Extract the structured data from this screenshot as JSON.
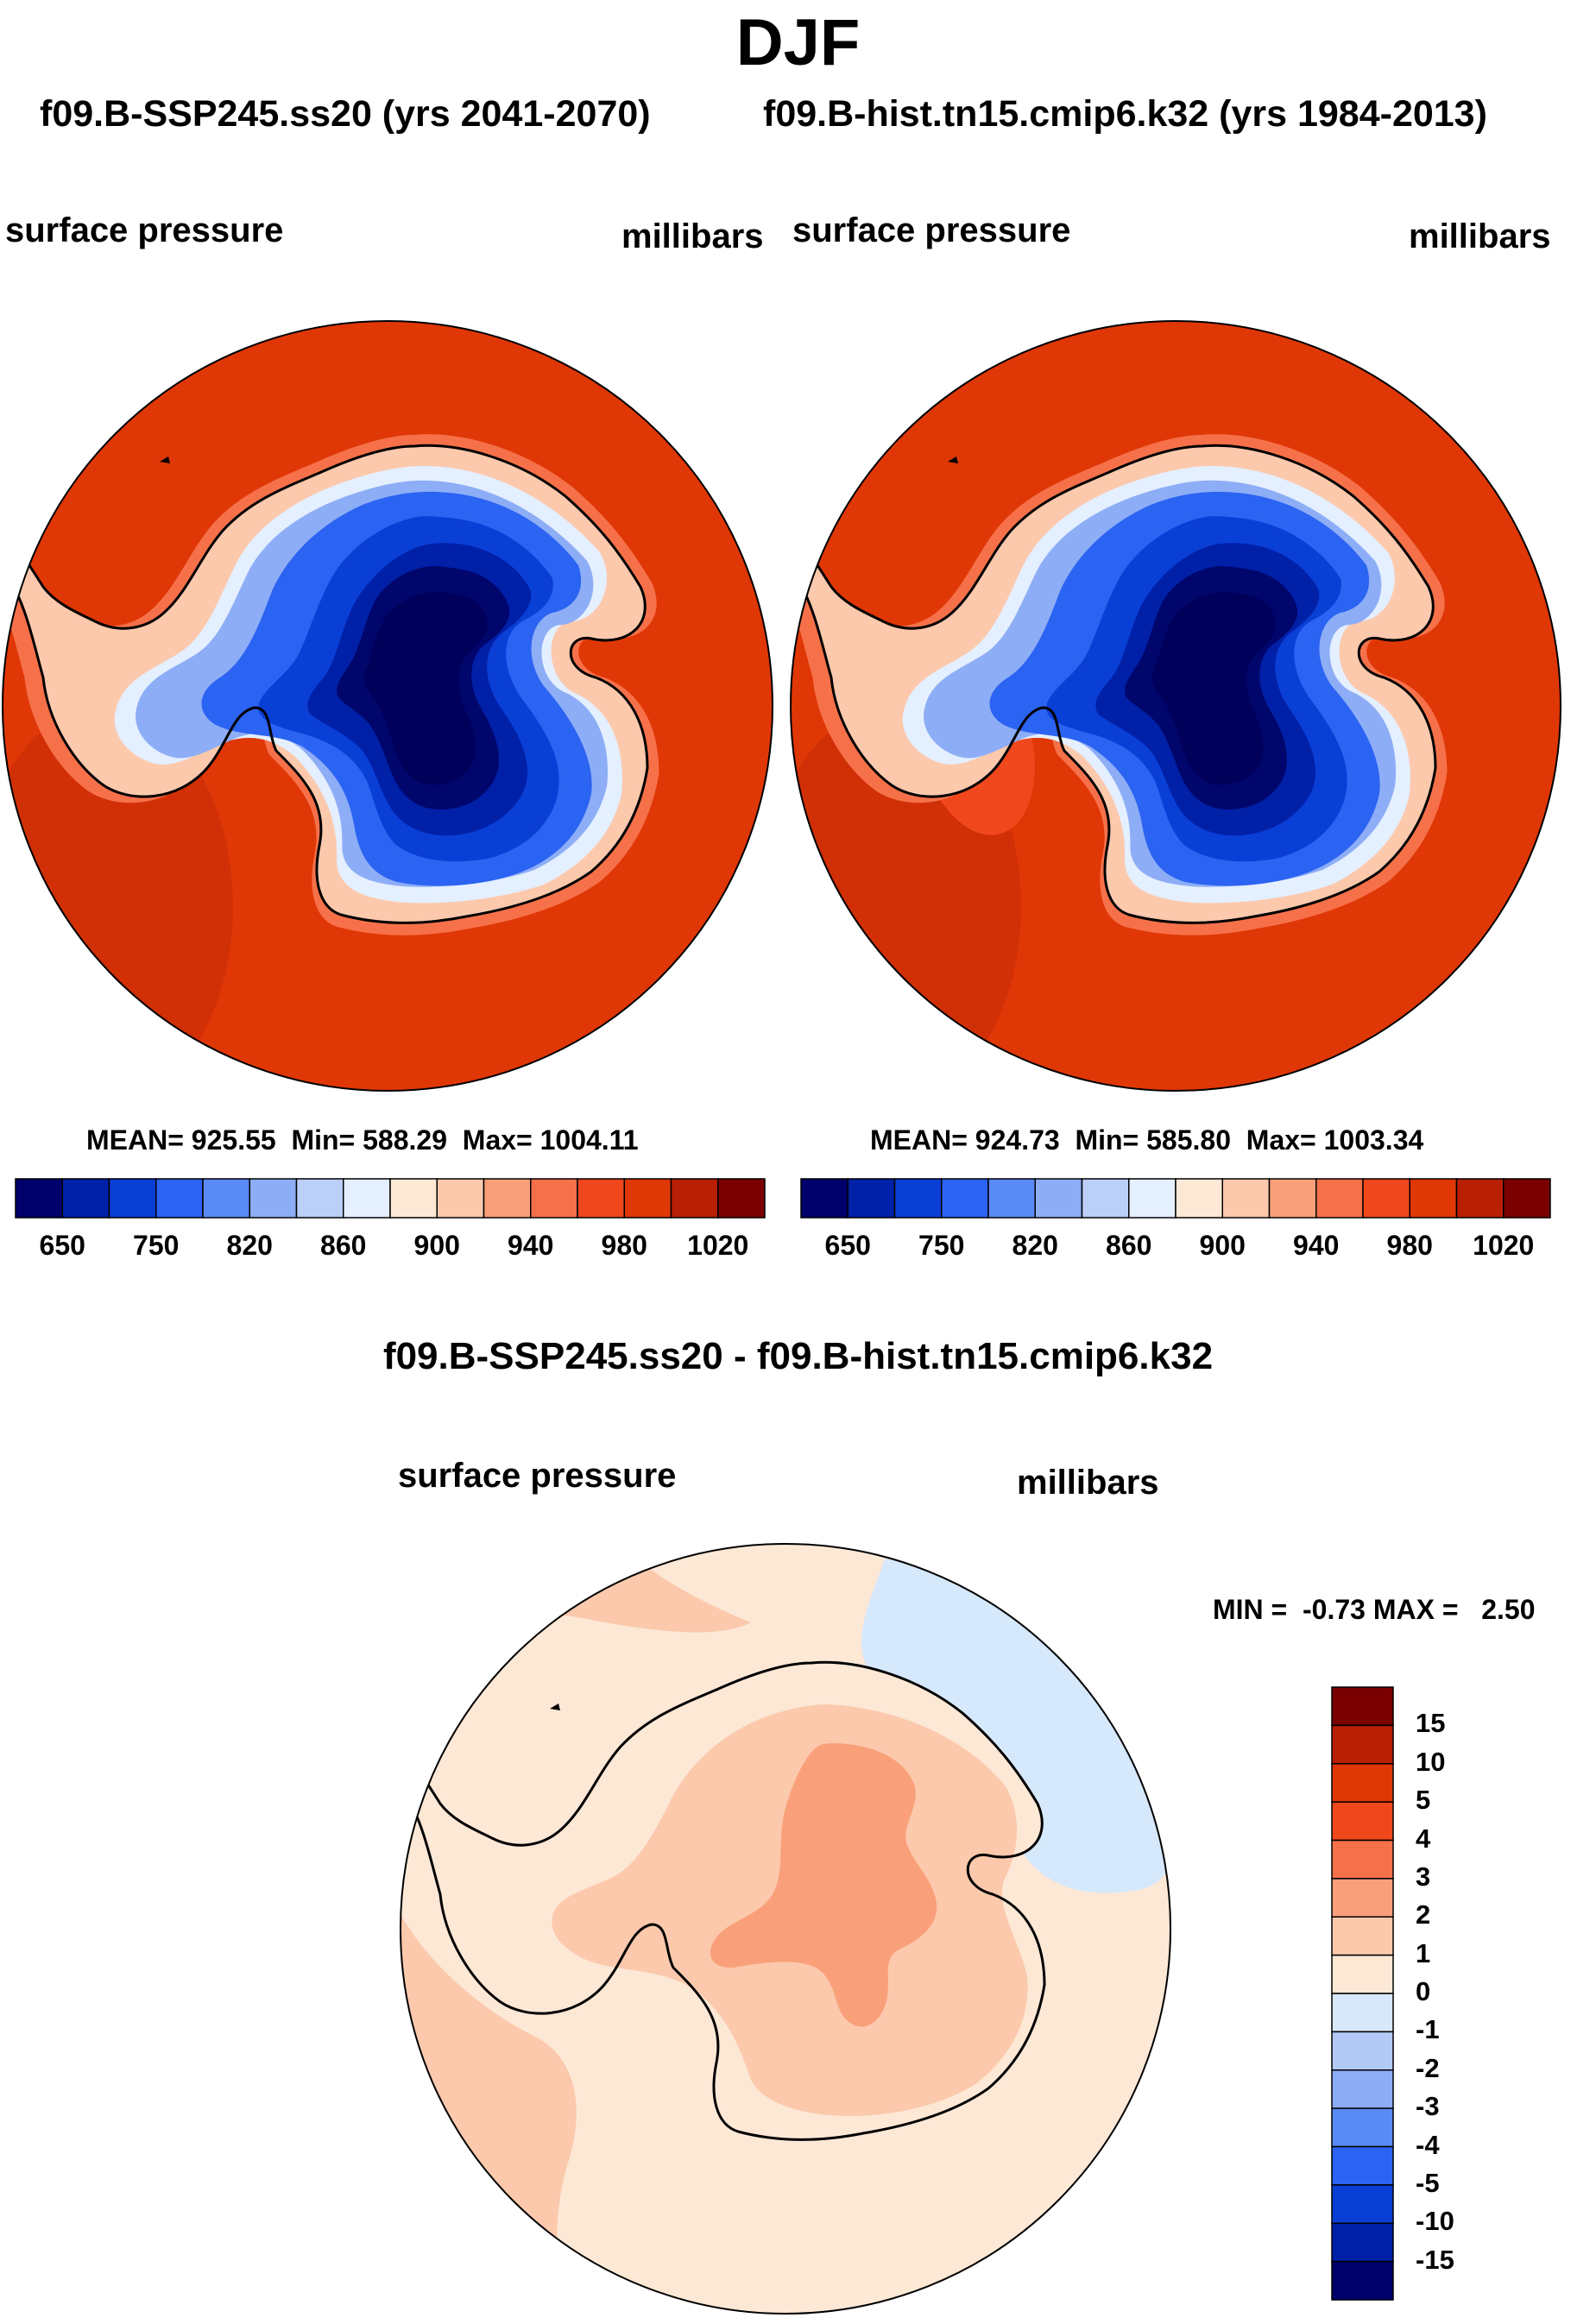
{
  "title": "DJF",
  "colors": {
    "ocean": "#e03706",
    "ocean_rim": "#c02a08",
    "coastline": "#000000",
    "bg": "#ffffff"
  },
  "chart_data": [
    {
      "type": "contour-map",
      "projection": "south-polar-stereographic",
      "header": "f09.B-SSP245.ss20 (yrs 2041-2070)",
      "left_label": "surface pressure",
      "right_label": "millibars",
      "stats_text": "MEAN= 925.55  Min= 588.29  Max= 1004.11",
      "stats": {
        "mean": 925.55,
        "min": 588.29,
        "max": 1004.11
      },
      "colorbar_labels": [
        "650",
        "750",
        "820",
        "860",
        "900",
        "940",
        "980",
        "1020"
      ],
      "colorbar_colors": [
        "#00006b",
        "#0020a8",
        "#0a3fd6",
        "#2b63f2",
        "#5a8af5",
        "#8dadf6",
        "#bccff8",
        "#e4efff",
        "#fde8d6",
        "#fcc9ad",
        "#f9a07a",
        "#f6714a",
        "#f0481c",
        "#e03706",
        "#b81f05",
        "#7a0000"
      ],
      "center_depression": true
    },
    {
      "type": "contour-map",
      "projection": "south-polar-stereographic",
      "header": "f09.B-hist.tn15.cmip6.k32 (yrs 1984-2013)",
      "left_label": "surface pressure",
      "right_label": "millibars",
      "stats_text": "MEAN= 924.73  Min= 585.80  Max= 1003.34",
      "stats": {
        "mean": 924.73,
        "min": 585.8,
        "max": 1003.34
      },
      "colorbar_labels": [
        "650",
        "750",
        "820",
        "860",
        "900",
        "940",
        "980",
        "1020"
      ],
      "colorbar_colors": [
        "#00006b",
        "#0020a8",
        "#0a3fd6",
        "#2b63f2",
        "#5a8af5",
        "#8dadf6",
        "#bccff8",
        "#e4efff",
        "#fde8d6",
        "#fcc9ad",
        "#f9a07a",
        "#f6714a",
        "#f0481c",
        "#e03706",
        "#b81f05",
        "#7a0000"
      ],
      "center_depression": true
    },
    {
      "type": "contour-map",
      "projection": "south-polar-stereographic",
      "header": "f09.B-SSP245.ss20 - f09.B-hist.tn15.cmip6.k32",
      "left_label": "surface pressure",
      "right_label": "millibars",
      "stats_text": "MIN =  -0.73 MAX =   2.50",
      "stats": {
        "min": -0.73,
        "max": 2.5
      },
      "colorbar_labels": [
        "15",
        "10",
        "5",
        "4",
        "3",
        "2",
        "1",
        "0",
        "-1",
        "-2",
        "-3",
        "-4",
        "-5",
        "-10",
        "-15"
      ],
      "colorbar_colors": [
        "#7a0000",
        "#b81f05",
        "#e03706",
        "#f0481c",
        "#f6714a",
        "#f9a07a",
        "#fcc9ad",
        "#fde8d6",
        "#d8e8fb",
        "#b3c9f6",
        "#8dadf6",
        "#5a8af5",
        "#2b63f2",
        "#0a3fd6",
        "#0020a8",
        "#00006b"
      ],
      "center_depression": false
    }
  ]
}
